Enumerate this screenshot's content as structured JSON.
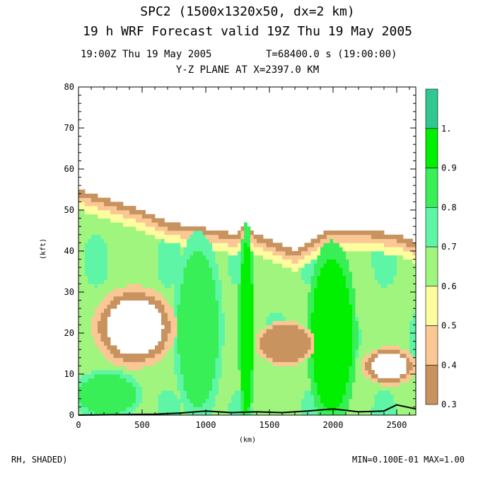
{
  "header": {
    "title_line1": "SPC2 (1500x1320x50, dx=2 km)",
    "title_line2": "19 h WRF Forecast valid 19Z Thu 19 May 2005",
    "time_left": "19:00Z Thu 19 May 2005",
    "time_right": "T=68400.0 s (19:00:00)",
    "plane": "Y-Z PLANE AT X=2397.0 KM"
  },
  "footer": {
    "field": "RH, SHADED)",
    "minmax": "MIN=0.100E-01 MAX=1.00"
  },
  "chart_data": {
    "type": "heatmap",
    "title": "Y-Z PLANE AT X=2397.0 KM",
    "xlabel": "(km)",
    "ylabel": "(kft)",
    "xlim": [
      0,
      2650
    ],
    "ylim": [
      0,
      80
    ],
    "xticks": [
      0,
      500,
      1000,
      1500,
      2000,
      2500
    ],
    "yticks": [
      0,
      10,
      20,
      30,
      40,
      50,
      60,
      70,
      80
    ],
    "colorbar": {
      "labels": [
        "0.3",
        "0.4",
        "0.5",
        "0.6",
        "0.7",
        "0.8",
        "0.9",
        "1."
      ],
      "levels": [
        0.3,
        0.4,
        0.5,
        0.6,
        0.7,
        0.8,
        0.9,
        1.0
      ],
      "colors": [
        "#c8935f",
        "#fbc795",
        "#fdfda0",
        "#a0f57f",
        "#5ff5a6",
        "#38ef58",
        "#00f000",
        "#30c890"
      ]
    },
    "moist_top_kft": [
      [
        0,
        55
      ],
      [
        100,
        54
      ],
      [
        300,
        52
      ],
      [
        500,
        50
      ],
      [
        700,
        47
      ],
      [
        900,
        46
      ],
      [
        1100,
        45
      ],
      [
        1250,
        44
      ],
      [
        1300,
        47
      ],
      [
        1400,
        44
      ],
      [
        1550,
        42
      ],
      [
        1700,
        40
      ],
      [
        1800,
        42
      ],
      [
        1950,
        45
      ],
      [
        2100,
        45
      ],
      [
        2300,
        45
      ],
      [
        2500,
        44
      ],
      [
        2650,
        42
      ]
    ],
    "terrain_kft": [
      [
        0,
        0
      ],
      [
        300,
        0.1
      ],
      [
        600,
        0.2
      ],
      [
        800,
        0.5
      ],
      [
        1000,
        1
      ],
      [
        1200,
        0.6
      ],
      [
        1400,
        0.8
      ],
      [
        1600,
        0.6
      ],
      [
        1800,
        1
      ],
      [
        2000,
        1.5
      ],
      [
        2200,
        0.8
      ],
      [
        2400,
        1
      ],
      [
        2500,
        2.5
      ],
      [
        2650,
        1.5
      ]
    ],
    "dry_regions": [
      {
        "x": [
          160,
          720
        ],
        "z": [
          13,
          30
        ],
        "rh": 0.2
      },
      {
        "x": [
          1430,
          1820
        ],
        "z": [
          13,
          22
        ],
        "rh": 0.3
      },
      {
        "x": [
          2260,
          2620
        ],
        "z": [
          8,
          16
        ],
        "rh": 0.25
      },
      {
        "x": [
          0,
          2650
        ],
        "z": [
          55,
          80
        ],
        "rh": 0.05
      }
    ],
    "saturated_regions": [
      {
        "x": [
          1830,
          2150
        ],
        "z": [
          1,
          38
        ],
        "rh": 0.97
      },
      {
        "x": [
          1270,
          1370
        ],
        "z": [
          1,
          42
        ],
        "rh": 0.95
      },
      {
        "x": [
          780,
          1100
        ],
        "z": [
          2,
          40
        ],
        "rh": 0.88
      },
      {
        "x": [
          0,
          450
        ],
        "z": [
          0,
          10
        ],
        "rh": 0.85
      }
    ]
  }
}
